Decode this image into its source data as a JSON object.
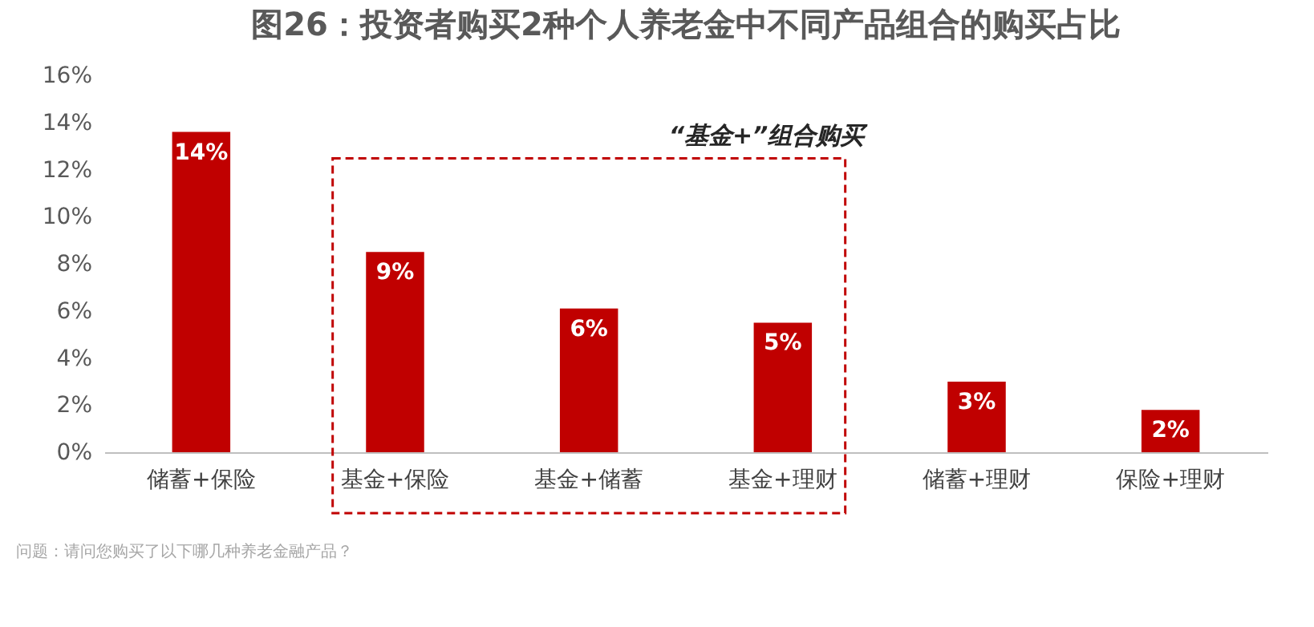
{
  "chart_data": {
    "type": "bar",
    "title": "图26：投资者购买2种个人养老金中不同产品组合的购买占比",
    "categories": [
      "储蓄+保险",
      "基金+保险",
      "基金+储蓄",
      "基金+理财",
      "储蓄+理财",
      "保险+理财"
    ],
    "values": [
      13.6,
      8.5,
      6.1,
      5.5,
      3.0,
      1.8
    ],
    "color": "#c00000",
    "value_labels": [
      "14%",
      "9%",
      "6%",
      "5%",
      "3%",
      "2%"
    ],
    "ylim": [
      0,
      16
    ],
    "yticks": [
      {
        "value": 0,
        "label": "0%"
      },
      {
        "value": 2,
        "label": "2%"
      },
      {
        "value": 4,
        "label": "4%"
      },
      {
        "value": 6,
        "label": "6%"
      },
      {
        "value": 8,
        "label": "8%"
      },
      {
        "value": 10,
        "label": "10%"
      },
      {
        "value": 12,
        "label": "12%"
      },
      {
        "value": 14,
        "label": "14%"
      },
      {
        "value": 16,
        "label": "16%"
      }
    ],
    "grid": false,
    "annotations": [
      "“基金+”组合购买",
      "问题：请问您购买了以下哪几种养老金融产品？"
    ]
  }
}
